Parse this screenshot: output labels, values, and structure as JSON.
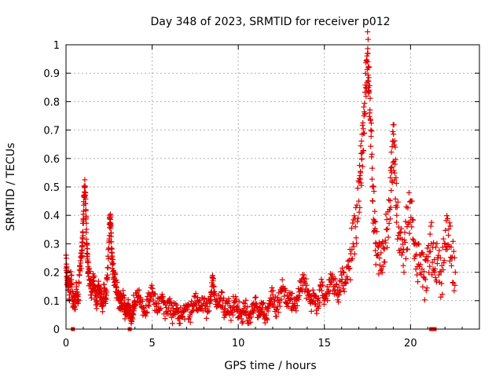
{
  "chart_data": {
    "type": "scatter",
    "title": "Day 348 of 2023, SRMTID for receiver p012",
    "xlabel": "GPS time / hours",
    "ylabel": "SRMTID / TECUs",
    "xlim": [
      0,
      24
    ],
    "ylim": [
      0,
      1
    ],
    "x_ticks": [
      0,
      5,
      10,
      15,
      20
    ],
    "x_tick_labels": [
      "0",
      "5",
      "10",
      "15",
      "20"
    ],
    "y_ticks": [
      0,
      0.1,
      0.2,
      0.3,
      0.4,
      0.5,
      0.6,
      0.7,
      0.8,
      0.9,
      1
    ],
    "y_tick_labels": [
      "0",
      "0.1",
      "0.2",
      "0.3",
      "0.4",
      "0.5",
      "0.6",
      "0.7",
      "0.8",
      "0.9",
      "1"
    ],
    "grid": true,
    "marker": "+",
    "color": "#e00000",
    "series": [
      {
        "name": "SRMTID",
        "points": [
          [
            0.0,
            0.26
          ],
          [
            0.05,
            0.2
          ],
          [
            0.1,
            0.15
          ],
          [
            0.15,
            0.18
          ],
          [
            0.2,
            0.12
          ],
          [
            0.3,
            0.19
          ],
          [
            0.4,
            0.1
          ],
          [
            0.5,
            0.08
          ],
          [
            0.6,
            0.14
          ],
          [
            0.7,
            0.09
          ],
          [
            0.8,
            0.22
          ],
          [
            0.9,
            0.25
          ],
          [
            0.95,
            0.29
          ],
          [
            1.0,
            0.38
          ],
          [
            1.05,
            0.47
          ],
          [
            1.1,
            0.5
          ],
          [
            1.15,
            0.42
          ],
          [
            1.2,
            0.3
          ],
          [
            1.25,
            0.24
          ],
          [
            1.3,
            0.2
          ],
          [
            1.4,
            0.16
          ],
          [
            1.5,
            0.13
          ],
          [
            1.6,
            0.18
          ],
          [
            1.7,
            0.12
          ],
          [
            1.8,
            0.1
          ],
          [
            1.9,
            0.15
          ],
          [
            2.0,
            0.11
          ],
          [
            2.1,
            0.08
          ],
          [
            2.2,
            0.13
          ],
          [
            2.3,
            0.09
          ],
          [
            2.4,
            0.19
          ],
          [
            2.5,
            0.31
          ],
          [
            2.55,
            0.4
          ],
          [
            2.6,
            0.37
          ],
          [
            2.65,
            0.27
          ],
          [
            2.7,
            0.23
          ],
          [
            2.8,
            0.18
          ],
          [
            2.9,
            0.15
          ],
          [
            3.0,
            0.12
          ],
          [
            3.1,
            0.1
          ],
          [
            3.2,
            0.09
          ],
          [
            3.3,
            0.11
          ],
          [
            3.4,
            0.07
          ],
          [
            3.5,
            0.06
          ],
          [
            3.6,
            0.09
          ],
          [
            3.7,
            0.05
          ],
          [
            3.8,
            0.03
          ],
          [
            3.9,
            0.08
          ],
          [
            4.0,
            0.1
          ],
          [
            4.2,
            0.12
          ],
          [
            4.4,
            0.08
          ],
          [
            4.6,
            0.06
          ],
          [
            4.8,
            0.1
          ],
          [
            5.0,
            0.13
          ],
          [
            5.2,
            0.09
          ],
          [
            5.4,
            0.07
          ],
          [
            5.6,
            0.11
          ],
          [
            5.8,
            0.06
          ],
          [
            6.0,
            0.09
          ],
          [
            6.2,
            0.05
          ],
          [
            6.4,
            0.07
          ],
          [
            6.6,
            0.04
          ],
          [
            6.8,
            0.06
          ],
          [
            7.0,
            0.08
          ],
          [
            7.2,
            0.05
          ],
          [
            7.4,
            0.09
          ],
          [
            7.6,
            0.1
          ],
          [
            7.8,
            0.07
          ],
          [
            8.0,
            0.09
          ],
          [
            8.2,
            0.06
          ],
          [
            8.4,
            0.1
          ],
          [
            8.5,
            0.18
          ],
          [
            8.6,
            0.12
          ],
          [
            8.8,
            0.08
          ],
          [
            9.0,
            0.11
          ],
          [
            9.2,
            0.07
          ],
          [
            9.4,
            0.09
          ],
          [
            9.6,
            0.06
          ],
          [
            9.8,
            0.1
          ],
          [
            10.0,
            0.07
          ],
          [
            10.2,
            0.05
          ],
          [
            10.4,
            0.08
          ],
          [
            10.6,
            0.04
          ],
          [
            10.8,
            0.06
          ],
          [
            11.0,
            0.09
          ],
          [
            11.2,
            0.05
          ],
          [
            11.4,
            0.07
          ],
          [
            11.6,
            0.04
          ],
          [
            11.8,
            0.08
          ],
          [
            12.0,
            0.12
          ],
          [
            12.2,
            0.07
          ],
          [
            12.4,
            0.1
          ],
          [
            12.6,
            0.15
          ],
          [
            12.8,
            0.09
          ],
          [
            13.0,
            0.12
          ],
          [
            13.2,
            0.08
          ],
          [
            13.4,
            0.1
          ],
          [
            13.6,
            0.14
          ],
          [
            13.8,
            0.18
          ],
          [
            14.0,
            0.13
          ],
          [
            14.2,
            0.09
          ],
          [
            14.4,
            0.12
          ],
          [
            14.6,
            0.08
          ],
          [
            14.8,
            0.15
          ],
          [
            15.0,
            0.1
          ],
          [
            15.2,
            0.13
          ],
          [
            15.4,
            0.18
          ],
          [
            15.6,
            0.15
          ],
          [
            15.8,
            0.12
          ],
          [
            16.0,
            0.19
          ],
          [
            16.2,
            0.16
          ],
          [
            16.4,
            0.22
          ],
          [
            16.6,
            0.28
          ],
          [
            16.8,
            0.36
          ],
          [
            17.0,
            0.45
          ],
          [
            17.1,
            0.55
          ],
          [
            17.2,
            0.62
          ],
          [
            17.3,
            0.75
          ],
          [
            17.4,
            0.85
          ],
          [
            17.5,
            0.97
          ],
          [
            17.55,
            0.92
          ],
          [
            17.6,
            0.84
          ],
          [
            17.7,
            0.7
          ],
          [
            17.8,
            0.5
          ],
          [
            17.9,
            0.38
          ],
          [
            18.0,
            0.3
          ],
          [
            18.2,
            0.25
          ],
          [
            18.4,
            0.22
          ],
          [
            18.6,
            0.35
          ],
          [
            18.8,
            0.42
          ],
          [
            18.9,
            0.55
          ],
          [
            19.0,
            0.66
          ],
          [
            19.1,
            0.58
          ],
          [
            19.2,
            0.4
          ],
          [
            19.4,
            0.32
          ],
          [
            19.6,
            0.28
          ],
          [
            19.8,
            0.36
          ],
          [
            20.0,
            0.45
          ],
          [
            20.2,
            0.3
          ],
          [
            20.4,
            0.22
          ],
          [
            20.6,
            0.26
          ],
          [
            20.8,
            0.18
          ],
          [
            21.0,
            0.24
          ],
          [
            21.2,
            0.3
          ],
          [
            21.4,
            0.2
          ],
          [
            21.6,
            0.25
          ],
          [
            21.8,
            0.16
          ],
          [
            22.0,
            0.3
          ],
          [
            22.2,
            0.33
          ],
          [
            22.4,
            0.25
          ],
          [
            22.6,
            0.2
          ]
        ]
      }
    ],
    "zero_markers": [
      0.4,
      3.7,
      21.2,
      21.4
    ]
  }
}
